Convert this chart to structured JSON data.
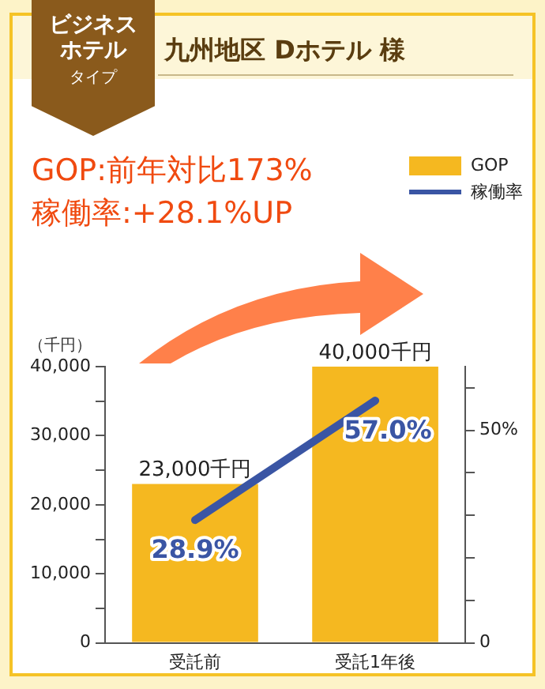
{
  "chart_data": {
    "type": "bar",
    "title": "九州地区 Dホテル 様",
    "subtitle": "ビジネスホテル",
    "annotations": [
      "タイプ",
      "GOP:前年対比173%",
      "稼働率:+28.1%UP"
    ],
    "ylabel": "（千円）",
    "categories": [
      "受託前",
      "受託1年後"
    ],
    "series": [
      {
        "name": "GOP",
        "color": "#f5b820",
        "values": [
          23000,
          40000
        ],
        "value_labels": [
          "23,000千円",
          "40,000千円"
        ]
      },
      {
        "name": "稼働率",
        "type": "line",
        "axis": "y2",
        "color": "#3a55a4",
        "values": [
          28.9,
          57.0
        ],
        "value_labels": [
          "28.9%",
          "57.0%"
        ]
      }
    ],
    "ylim": [
      0,
      40000
    ],
    "yticks": [
      0,
      {
        "value": 5000,
        "label": null
      },
      {
        "value": 10000,
        "label": "10,000"
      },
      {
        "value": 15000,
        "label": null
      },
      {
        "value": 20000,
        "label": "20,000"
      },
      {
        "value": 25000,
        "label": null
      },
      {
        "value": 30000,
        "label": "30,000"
      },
      {
        "value": 35000,
        "label": null
      },
      {
        "value": 40000,
        "label": "40,000"
      }
    ],
    "y2lim": [
      0,
      65
    ],
    "y2ticks": [
      0,
      {
        "value": 10,
        "label": null
      },
      {
        "value": 20,
        "label": null
      },
      {
        "value": 30,
        "label": null
      },
      {
        "value": 40,
        "label": null
      },
      {
        "value": 50,
        "label": "50%"
      },
      {
        "value": 60,
        "label": null
      }
    ],
    "grid": false,
    "legend": "top right",
    "marker": "none"
  }
}
